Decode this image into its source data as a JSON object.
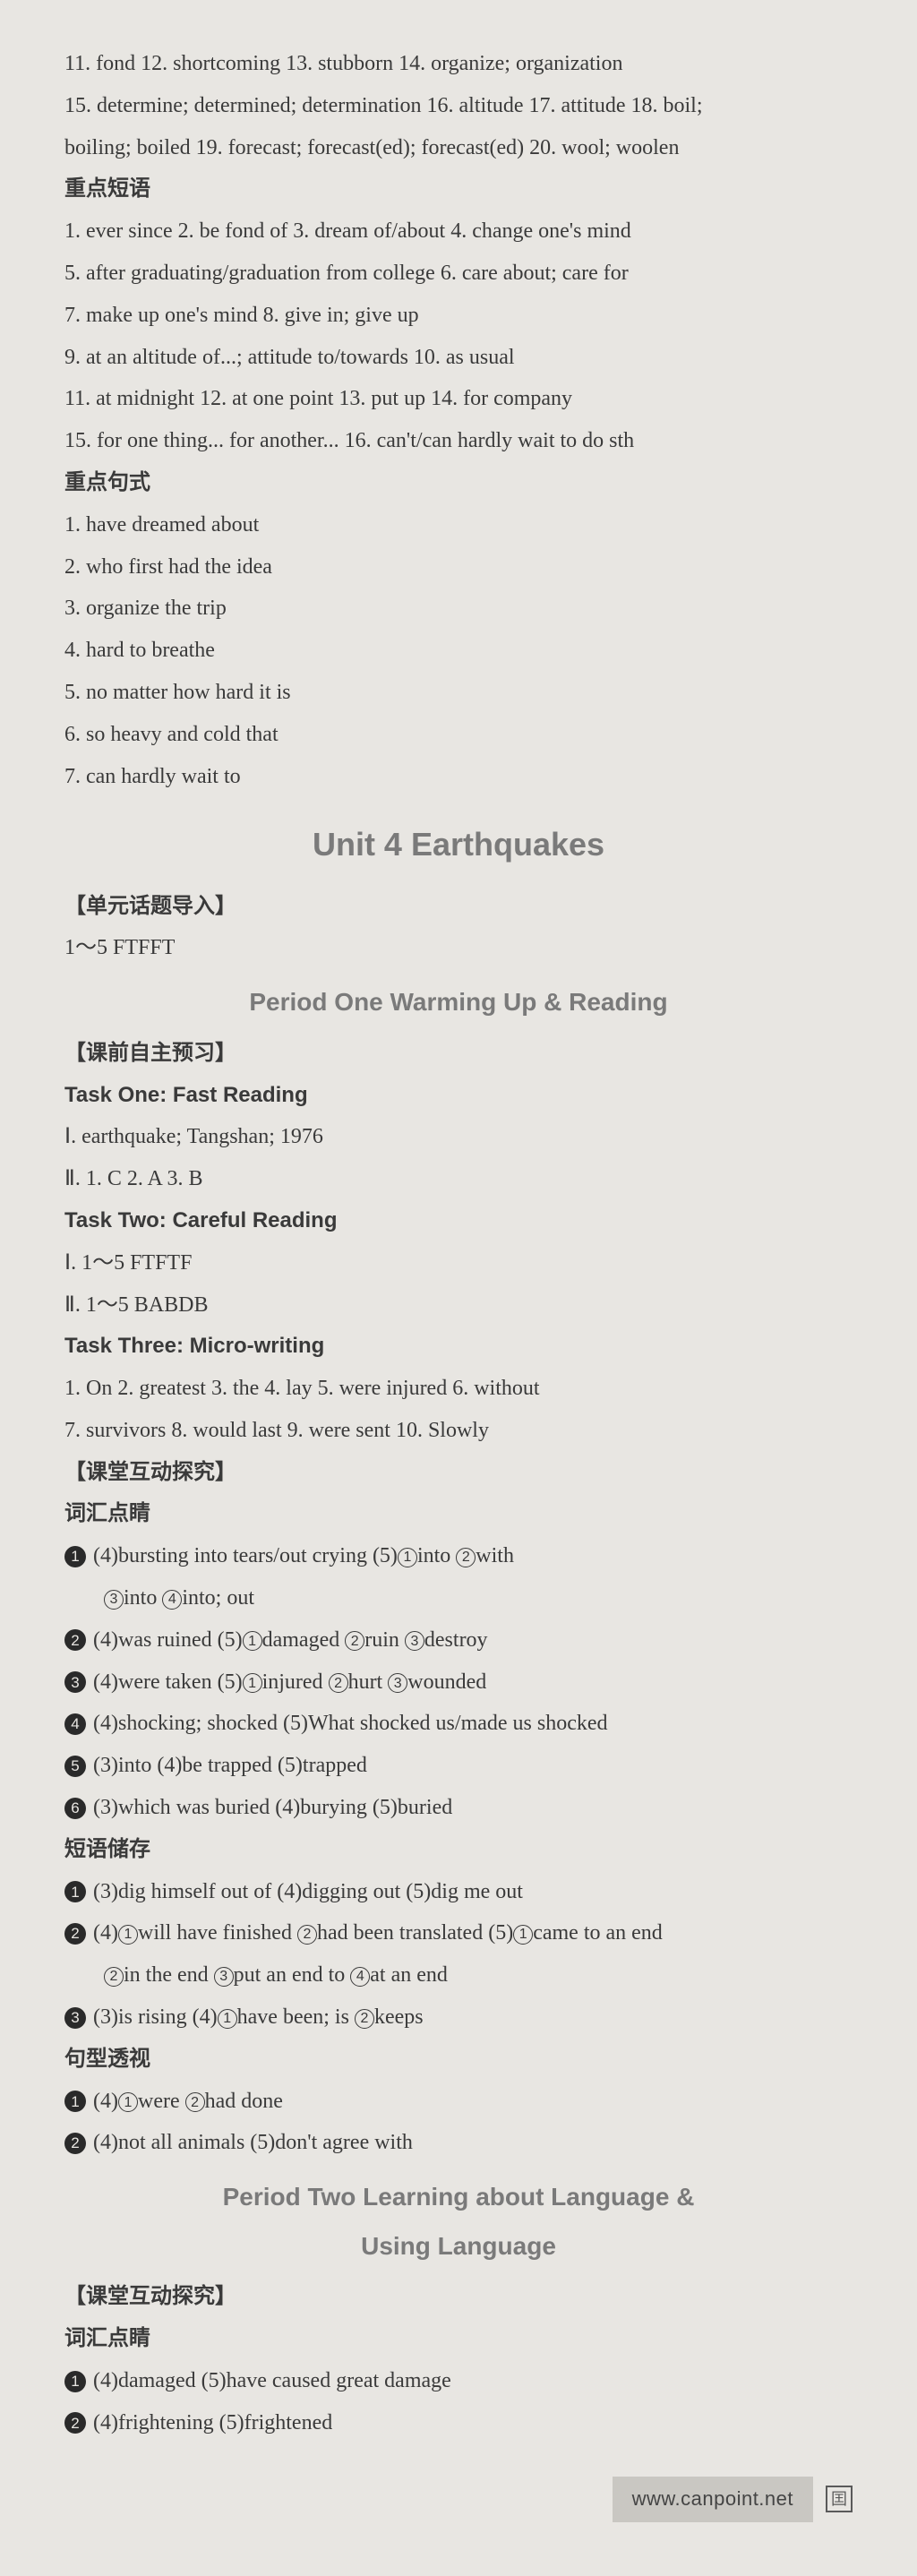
{
  "top_lines": [
    "11. fond  12. shortcoming  13. stubborn  14. organize; organization",
    "15. determine; determined; determination  16. altitude  17. attitude  18. boil;",
    "boiling; boiled  19. forecast; forecast(ed); forecast(ed)  20. wool; woolen"
  ],
  "phrases_heading": "重点短语",
  "phrases": [
    "1. ever since  2. be fond of  3. dream of/about  4. change one's mind",
    "5. after graduating/graduation from college  6. care about; care for",
    "7. make up one's mind  8. give in; give up",
    "9. at an altitude of...; attitude to/towards  10. as usual",
    "11. at midnight  12. at one point  13. put up  14. for company",
    "15. for one thing... for another...  16. can't/can hardly wait to do sth"
  ],
  "sentences_heading": "重点句式",
  "sentences": [
    "1. have dreamed about",
    "2. who first had the idea",
    "3. organize the trip",
    "4. hard to breathe",
    "5. no matter how hard it is",
    "6. so heavy and cold that",
    "7. can hardly wait to"
  ],
  "unit_title": "Unit 4  Earthquakes",
  "intro_heading": "【单元话题导入】",
  "intro_line": "1～5  FTFFT",
  "period1_title": "Period One  Warming Up & Reading",
  "preclass_heading": "【课前自主预习】",
  "task1_heading": "Task One: Fast Reading",
  "task1_lines": [
    "Ⅰ. earthquake; Tangshan; 1976",
    "Ⅱ. 1. C  2. A  3. B"
  ],
  "task2_heading": "Task Two: Careful Reading",
  "task2_lines": [
    "Ⅰ. 1～5  FTFTF",
    "Ⅱ. 1～5  BABDB"
  ],
  "task3_heading": "Task Three: Micro-writing",
  "task3_lines": [
    "1. On  2. greatest  3. the  4. lay  5. were injured  6. without",
    "7. survivors  8. would last  9. were sent  10. Slowly"
  ],
  "inclass_heading": "【课堂互动探究】",
  "vocab_heading": "词汇点睛",
  "vocab_items": [
    {
      "n": "1",
      "a": "(4)bursting into tears/out crying  (5)",
      "circled": [
        "into",
        "with"
      ],
      "b": "",
      "cont": [
        {
          "circled": [
            "into",
            "into; out"
          ]
        }
      ]
    },
    {
      "n": "2",
      "a": "(4)was ruined  (5)",
      "circled": [
        "damaged",
        "ruin",
        "destroy"
      ]
    },
    {
      "n": "3",
      "a": "(4)were taken  (5)",
      "circled": [
        "injured",
        "hurt",
        "wounded"
      ]
    },
    {
      "n": "4",
      "a": "(4)shocking; shocked  (5)What shocked us/made us shocked"
    },
    {
      "n": "5",
      "a": "(3)into  (4)be trapped  (5)trapped"
    },
    {
      "n": "6",
      "a": "(3)which was buried  (4)burying  (5)buried"
    }
  ],
  "phrase_store_heading": "短语储存",
  "phrase_store": [
    {
      "n": "1",
      "a": "(3)dig himself out of  (4)digging out  (5)dig me out"
    },
    {
      "n": "2",
      "a": "(4)",
      "circled": [
        "will have finished",
        "had been translated"
      ],
      "tail": "  (5)",
      "circled2": [
        "came to an end"
      ],
      "cont": [
        {
          "circled": [
            "in the end",
            "put an end to",
            "at an end"
          ],
          "start": 2
        }
      ]
    },
    {
      "n": "3",
      "a": "(3)is rising  (4)",
      "circled": [
        "have been; is",
        "keeps"
      ]
    }
  ],
  "pattern_heading": "句型透视",
  "pattern_items": [
    {
      "n": "1",
      "a": "(4)",
      "circled": [
        "were",
        "had done"
      ]
    },
    {
      "n": "2",
      "a": "(4)not all animals  (5)don't agree with"
    }
  ],
  "period2_title_a": "Period Two  Learning about Language &",
  "period2_title_b": "Using Language",
  "inclass2_heading": "【课堂互动探究】",
  "vocab2_heading": "词汇点睛",
  "vocab2_items": [
    {
      "n": "1",
      "a": "(4)damaged  (5)have caused great damage"
    },
    {
      "n": "2",
      "a": "(4)frightening  (5)frightened"
    }
  ],
  "footer_url": "www.canpoint.net",
  "footer_logo": "囯"
}
